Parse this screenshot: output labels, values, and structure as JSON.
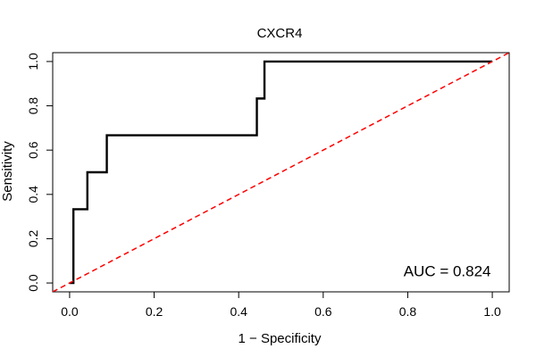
{
  "chart_data": {
    "type": "line",
    "title": "CXCR4",
    "xlabel": "1 − Specificity",
    "ylabel": "Sensitivity",
    "xlim": [
      -0.04,
      1.04
    ],
    "ylim": [
      -0.04,
      1.04
    ],
    "xticks": [
      0.0,
      0.2,
      0.4,
      0.6,
      0.8,
      1.0
    ],
    "xtick_labels": [
      "0.0",
      "0.2",
      "0.4",
      "0.6",
      "0.8",
      "1.0"
    ],
    "yticks": [
      0.0,
      0.2,
      0.4,
      0.6,
      0.8,
      1.0
    ],
    "ytick_labels": [
      "0.0",
      "0.2",
      "0.4",
      "0.6",
      "0.8",
      "1.0"
    ],
    "grid": false,
    "series": [
      {
        "style": "step",
        "color": "#000000",
        "x": [
          0.0,
          0.009,
          0.009,
          0.042,
          0.042,
          0.088,
          0.088,
          0.443,
          0.443,
          0.461,
          0.461,
          1.0
        ],
        "y": [
          0.0,
          0.0,
          0.333,
          0.333,
          0.5,
          0.5,
          0.667,
          0.667,
          0.833,
          0.833,
          1.0,
          1.0
        ]
      },
      {
        "style": "reference-diagonal",
        "color": "#ff0000",
        "x": [
          -0.04,
          1.04
        ],
        "y": [
          -0.04,
          1.04
        ]
      }
    ],
    "annotations": [
      {
        "text": "AUC = 0.824",
        "x": 0.79,
        "y": 0.03
      }
    ]
  }
}
